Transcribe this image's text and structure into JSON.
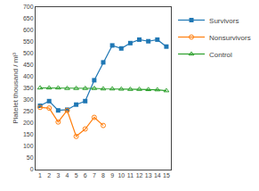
{
  "chart_data": {
    "type": "line",
    "ylabel": "Platelet thousand / ml³",
    "series": [
      {
        "name": "Survivors",
        "marker": "square",
        "x": [
          1,
          2,
          3,
          4,
          5,
          6,
          7,
          8,
          9,
          10,
          11,
          12,
          13,
          14,
          15
        ],
        "values": [
          275,
          295,
          255,
          258,
          280,
          295,
          385,
          462,
          535,
          522,
          545,
          560,
          553,
          560,
          530
        ]
      },
      {
        "name": "Nonsurvivors",
        "marker": "circle-open",
        "x": [
          1,
          2,
          3,
          4,
          5,
          6,
          7,
          8
        ],
        "values": [
          268,
          265,
          205,
          255,
          143,
          175,
          225,
          190
        ]
      },
      {
        "name": "Control",
        "marker": "triangle-up-open",
        "x": [
          1,
          2,
          3,
          4,
          5,
          6,
          7,
          8,
          9,
          10,
          11,
          12,
          13,
          14,
          15
        ],
        "values": [
          352,
          352,
          352,
          350,
          350,
          350,
          350,
          348,
          348,
          347,
          346,
          346,
          345,
          344,
          340
        ]
      }
    ],
    "xlim": [
      0.5,
      15.5
    ],
    "xticks": [
      1,
      2,
      3,
      4,
      5,
      6,
      7,
      8,
      9,
      10,
      11,
      12,
      13,
      14,
      15
    ],
    "ylim": [
      0,
      700
    ],
    "yticks": [
      0,
      50,
      100,
      150,
      200,
      250,
      300,
      350,
      400,
      450,
      500,
      550,
      600,
      650,
      700
    ],
    "grid": false,
    "legend": "upper right"
  }
}
